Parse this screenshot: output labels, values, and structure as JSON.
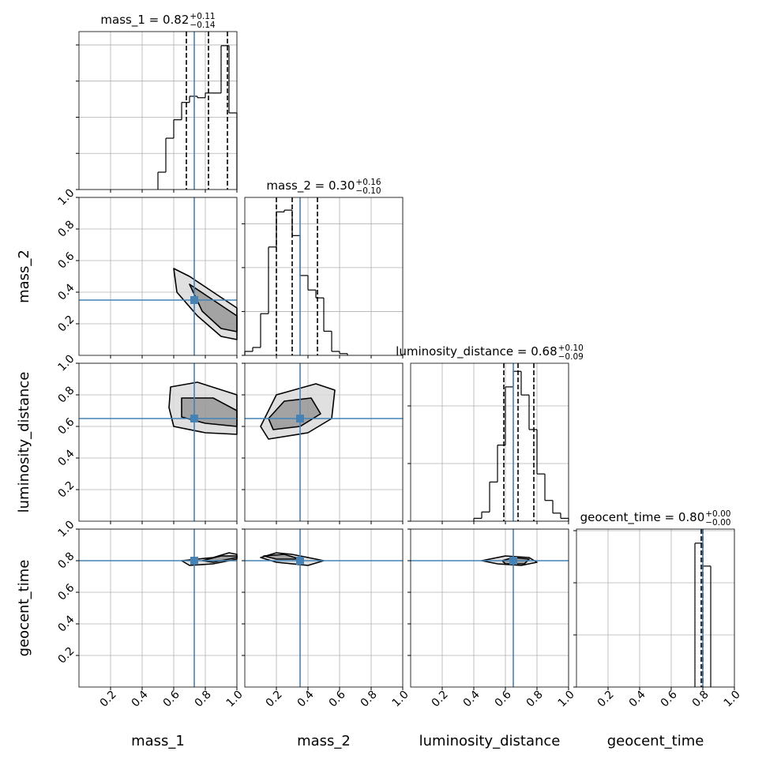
{
  "chart_data": {
    "type": "corner",
    "parameters": [
      "mass_1",
      "mass_2",
      "luminosity_distance",
      "geocent_time"
    ],
    "titles": [
      {
        "text": "mass_1 = 0.82",
        "sup": "+0.11",
        "sub": "−0.14"
      },
      {
        "text": "mass_2 = 0.30",
        "sup": "+0.16",
        "sub": "−0.10"
      },
      {
        "text": "luminosity_distance = 0.68",
        "sup": "+0.10",
        "sub": "−0.09"
      },
      {
        "text": "geocent_time = 0.80",
        "sup": "+0.00",
        "sub": "−0.00"
      }
    ],
    "truths": [
      0.73,
      0.35,
      0.65,
      0.8
    ],
    "truth_color": "#4682b4",
    "quantiles": [
      [
        0.68,
        0.82,
        0.94
      ],
      [
        0.2,
        0.3,
        0.46
      ],
      [
        0.59,
        0.68,
        0.78
      ],
      [
        0.79,
        0.8,
        0.8
      ]
    ],
    "xlim": [
      0,
      1
    ],
    "xticks": [
      0.2,
      0.4,
      0.6,
      0.8,
      {
        "value": 1,
        "label": "1.0"
      }
    ],
    "ylim": [
      0,
      1
    ],
    "yticks": [
      0.2,
      0.4,
      0.6,
      0.8,
      {
        "value": 1,
        "label": "1.0"
      }
    ],
    "grid": true,
    "histograms": [
      {
        "bins": [
          0.5,
          0.55,
          0.6,
          0.65,
          0.7,
          0.75,
          0.8,
          0.85,
          0.9,
          0.95,
          1.0
        ],
        "counts": [
          0.48,
          1.42,
          1.93,
          2.41,
          2.58,
          2.54,
          2.67,
          2.67,
          3.98,
          2.12
        ],
        "ylim": [
          0,
          4.37
        ],
        "yticks": [
          0,
          1,
          2,
          3,
          4
        ]
      },
      {
        "bins": [
          0,
          0.05,
          0.1,
          0.15,
          0.2,
          0.25,
          0.3,
          0.35,
          0.4,
          0.45,
          0.5,
          0.55,
          0.6,
          0.65
        ],
        "counts": [
          0.09,
          0.18,
          0.95,
          2.47,
          3.27,
          3.31,
          2.73,
          1.82,
          1.49,
          1.31,
          0.55,
          0.09,
          0.04
        ],
        "ylim": [
          0,
          3.6
        ],
        "yticks": [
          0,
          1,
          2,
          3
        ]
      },
      {
        "bins": [
          0.4,
          0.45,
          0.5,
          0.55,
          0.6,
          0.65,
          0.7,
          0.75,
          0.8,
          0.85,
          0.9,
          0.95,
          1.0
        ],
        "counts": [
          0.05,
          0.16,
          0.68,
          1.32,
          2.33,
          2.6,
          2.19,
          1.59,
          0.82,
          0.36,
          0.14,
          0.05
        ],
        "ylim": [
          0,
          2.74
        ],
        "yticks": [
          0,
          1,
          2
        ]
      },
      {
        "bins": [
          0.75,
          0.8,
          0.85
        ],
        "counts": [
          2.76,
          2.32
        ],
        "ylim": [
          0,
          3.03
        ],
        "yticks": [
          0,
          1,
          2,
          3
        ]
      }
    ],
    "contours": [
      [
        {
          "x": [
            0.6,
            0.7,
            0.85,
            1.0,
            1.0,
            0.9,
            0.75,
            0.62
          ],
          "y": [
            0.55,
            0.5,
            0.4,
            0.3,
            0.1,
            0.12,
            0.25,
            0.4
          ]
        },
        {
          "x": [
            0.7,
            0.85,
            1.0,
            1.0,
            0.9,
            0.78
          ],
          "y": [
            0.45,
            0.35,
            0.25,
            0.15,
            0.17,
            0.28
          ]
        }
      ],
      [
        {
          "x": [
            0.58,
            0.75,
            1.0,
            1.0,
            0.8,
            0.6,
            0.57
          ],
          "y": [
            0.85,
            0.88,
            0.8,
            0.55,
            0.56,
            0.6,
            0.72
          ]
        },
        {
          "x": [
            0.65,
            0.85,
            1.0,
            1.0,
            0.8,
            0.65
          ],
          "y": [
            0.78,
            0.78,
            0.7,
            0.6,
            0.62,
            0.66
          ]
        }
      ],
      [
        {
          "x": [
            0.1,
            0.2,
            0.45,
            0.57,
            0.55,
            0.4,
            0.15
          ],
          "y": [
            0.6,
            0.8,
            0.87,
            0.83,
            0.65,
            0.56,
            0.52
          ]
        },
        {
          "x": [
            0.15,
            0.25,
            0.42,
            0.48,
            0.35,
            0.18
          ],
          "y": [
            0.65,
            0.76,
            0.78,
            0.68,
            0.6,
            0.58
          ]
        }
      ],
      [
        {
          "x": [
            0.65,
            0.85,
            0.95,
            1.0,
            1.0,
            0.85,
            0.7
          ],
          "y": [
            0.8,
            0.82,
            0.85,
            0.84,
            0.81,
            0.78,
            0.77
          ]
        },
        {
          "x": [
            0.78,
            0.9,
            1.0,
            1.0,
            0.85
          ],
          "y": [
            0.8,
            0.83,
            0.83,
            0.82,
            0.79
          ]
        }
      ],
      [
        {
          "x": [
            0.1,
            0.2,
            0.3,
            0.5,
            0.4,
            0.2
          ],
          "y": [
            0.82,
            0.85,
            0.84,
            0.8,
            0.77,
            0.79
          ]
        },
        {
          "x": [
            0.12,
            0.25,
            0.35,
            0.2
          ],
          "y": [
            0.83,
            0.84,
            0.81,
            0.81
          ]
        }
      ],
      [
        {
          "x": [
            0.45,
            0.6,
            0.75,
            0.8,
            0.7,
            0.55
          ],
          "y": [
            0.8,
            0.83,
            0.82,
            0.79,
            0.77,
            0.78
          ]
        },
        {
          "x": [
            0.58,
            0.65,
            0.75,
            0.72,
            0.6
          ],
          "y": [
            0.8,
            0.82,
            0.81,
            0.78,
            0.78
          ]
        }
      ]
    ]
  }
}
